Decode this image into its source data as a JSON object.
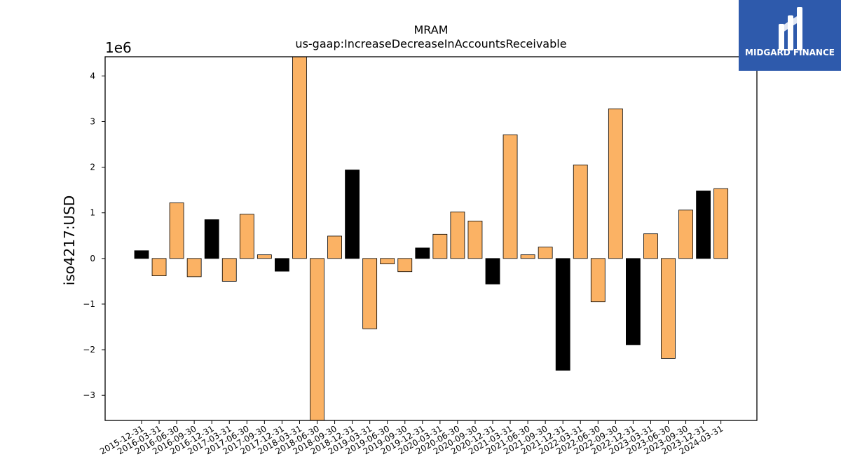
{
  "chart_data": {
    "type": "bar",
    "title": "MRAM",
    "subtitle": "us-gaap:IncreaseDecreaseInAccountsReceivable",
    "ylabel": "iso4217:USD",
    "y_offset_label": "1e6",
    "ylim": [
      -3.55,
      4.42
    ],
    "yticks": [
      -3,
      -2,
      -1,
      0,
      1,
      2,
      3,
      4
    ],
    "ytick_labels": [
      "−3",
      "−2",
      "−1",
      "0",
      "1",
      "2",
      "3",
      "4"
    ],
    "categories": [
      "2015-12-31",
      "2016-03-31",
      "2016-06-30",
      "2016-09-30",
      "2016-12-31",
      "2017-03-31",
      "2017-06-30",
      "2017-09-30",
      "2017-12-31",
      "2018-03-31",
      "2018-06-30",
      "2018-09-30",
      "2018-12-31",
      "2019-03-31",
      "2019-06-30",
      "2019-09-30",
      "2019-12-31",
      "2020-03-31",
      "2020-06-30",
      "2020-09-30",
      "2020-12-31",
      "2021-03-31",
      "2021-06-30",
      "2021-09-30",
      "2021-12-31",
      "2022-03-31",
      "2022-06-30",
      "2022-09-30",
      "2022-12-31",
      "2023-03-31",
      "2023-06-30",
      "2023-09-30",
      "2023-12-31",
      "2024-03-31"
    ],
    "values": [
      0.17,
      -0.38,
      1.22,
      -0.4,
      0.85,
      -0.5,
      0.97,
      0.08,
      -0.28,
      4.42,
      -3.55,
      0.49,
      1.94,
      -1.54,
      -0.12,
      -0.29,
      0.23,
      0.53,
      1.02,
      0.82,
      -0.56,
      2.71,
      0.08,
      0.25,
      -2.45,
      2.05,
      -0.95,
      3.28,
      -1.89,
      0.54,
      -2.19,
      1.06,
      1.48,
      1.53
    ],
    "colors": [
      "#000000",
      "#fbb264",
      "#fbb264",
      "#fbb264",
      "#000000",
      "#fbb264",
      "#fbb264",
      "#fbb264",
      "#000000",
      "#fbb264",
      "#fbb264",
      "#fbb264",
      "#000000",
      "#fbb264",
      "#fbb264",
      "#fbb264",
      "#000000",
      "#fbb264",
      "#fbb264",
      "#fbb264",
      "#000000",
      "#fbb264",
      "#fbb264",
      "#fbb264",
      "#000000",
      "#fbb264",
      "#fbb264",
      "#fbb264",
      "#000000",
      "#fbb264",
      "#fbb264",
      "#fbb264",
      "#000000",
      "#fbb264"
    ],
    "grid": false,
    "legend": "none"
  },
  "logo": {
    "text": "MIDGARD FINANCE",
    "background": "#2e5aac",
    "name": "midgard-finance-logo"
  }
}
